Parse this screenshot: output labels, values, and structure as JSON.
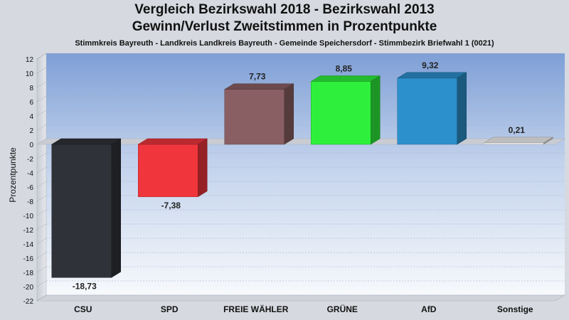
{
  "chart_data": {
    "type": "bar",
    "title": "Vergleich Bezirkswahl 2018 - Bezirkswahl 2013",
    "subtitle": "Gewinn/Verlust Zweitstimmen in Prozentpunkte",
    "caption": "Stimmkreis Bayreuth - Landkreis Landkreis Bayreuth - Gemeinde Speichersdorf - Stimmbezirk Briefwahl 1 (0021)",
    "ylabel": "Prozentpunkte",
    "xlabel": "",
    "categories": [
      "CSU",
      "SPD",
      "FREIE WÄHLER",
      "GRÜNE",
      "AfD",
      "Sonstige"
    ],
    "values": [
      -18.73,
      -7.38,
      7.73,
      8.85,
      9.32,
      0.21
    ],
    "value_labels": [
      "-18,73",
      "-7,38",
      "7,73",
      "8,85",
      "9,32",
      "0,21"
    ],
    "colors": [
      "#2f3238",
      "#f0363c",
      "#8a5f63",
      "#2ef03c",
      "#2b90cc",
      "#f2f2f2"
    ],
    "ylim": [
      -22,
      12
    ],
    "yticks": [
      "12",
      "10",
      "8",
      "6",
      "4",
      "2",
      "0",
      "-2",
      "-4",
      "-6",
      "-8",
      "-10",
      "-12",
      "-14",
      "-16",
      "-18",
      "-20",
      "-22"
    ],
    "ytick_values": [
      12,
      10,
      8,
      6,
      4,
      2,
      0,
      -2,
      -4,
      -6,
      -8,
      -10,
      -12,
      -14,
      -16,
      -18,
      -20,
      -22
    ],
    "grid": true,
    "legend": "none"
  }
}
